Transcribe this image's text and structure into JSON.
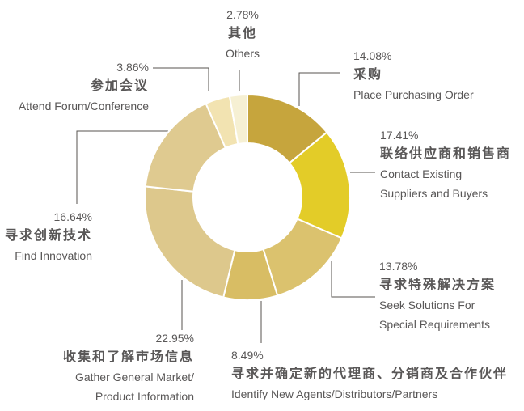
{
  "style": {
    "background": "#ffffff",
    "text_color": "#595757",
    "line_color": "#57534f"
  },
  "chart_data": {
    "type": "pie",
    "subtype": "donut",
    "title": "",
    "legend_position": "callout-labels",
    "start_angle_deg": 0,
    "clockwise": true,
    "inner_radius_ratio": 0.53,
    "categories": [
      "采购 Place Purchasing Order",
      "联络供应商和销售商 Contact Existing Suppliers and Buyers",
      "寻求特殊解决方案 Seek Solutions For Special Requirements",
      "寻求并确定新的代理商、分销商及合作伙伴 Identify New Agents/Distributors/Partners",
      "收集和了解市场信息 Gather General Market/Product Information",
      "寻求创新技术 Find Innovation",
      "参加会议 Attend Forum/Conference",
      "其他 Others"
    ],
    "values": [
      14.08,
      17.41,
      13.78,
      8.49,
      22.95,
      16.64,
      3.86,
      2.78
    ],
    "colors": [
      "#c6a53d",
      "#e3cc28",
      "#dbc26e",
      "#d8bd64",
      "#ddc88c",
      "#dfca90",
      "#f2e3b1",
      "#f6f0d3"
    ]
  },
  "labels": [
    {
      "pct": "2.78%",
      "zh": "其他",
      "en": "Others"
    },
    {
      "pct": "14.08%",
      "zh": "采购",
      "en": "Place Purchasing Order"
    },
    {
      "pct": "17.41%",
      "zh": "联络供应商和销售商",
      "en": "Contact Existing\nSuppliers and Buyers"
    },
    {
      "pct": "13.78%",
      "zh": "寻求特殊解决方案",
      "en": "Seek Solutions For\nSpecial Requirements"
    },
    {
      "pct": "8.49%",
      "zh": "寻求并确定新的代理商、分销商及合作伙伴",
      "en": "Identify New Agents/Distributors/Partners"
    },
    {
      "pct": "22.95%",
      "zh": "收集和了解市场信息",
      "en": "Gather General Market/\nProduct Information"
    },
    {
      "pct": "16.64%",
      "zh": "寻求创新技术",
      "en": "Find Innovation"
    },
    {
      "pct": "3.86%",
      "zh": "参加会议",
      "en": "Attend Forum/Conference"
    }
  ]
}
